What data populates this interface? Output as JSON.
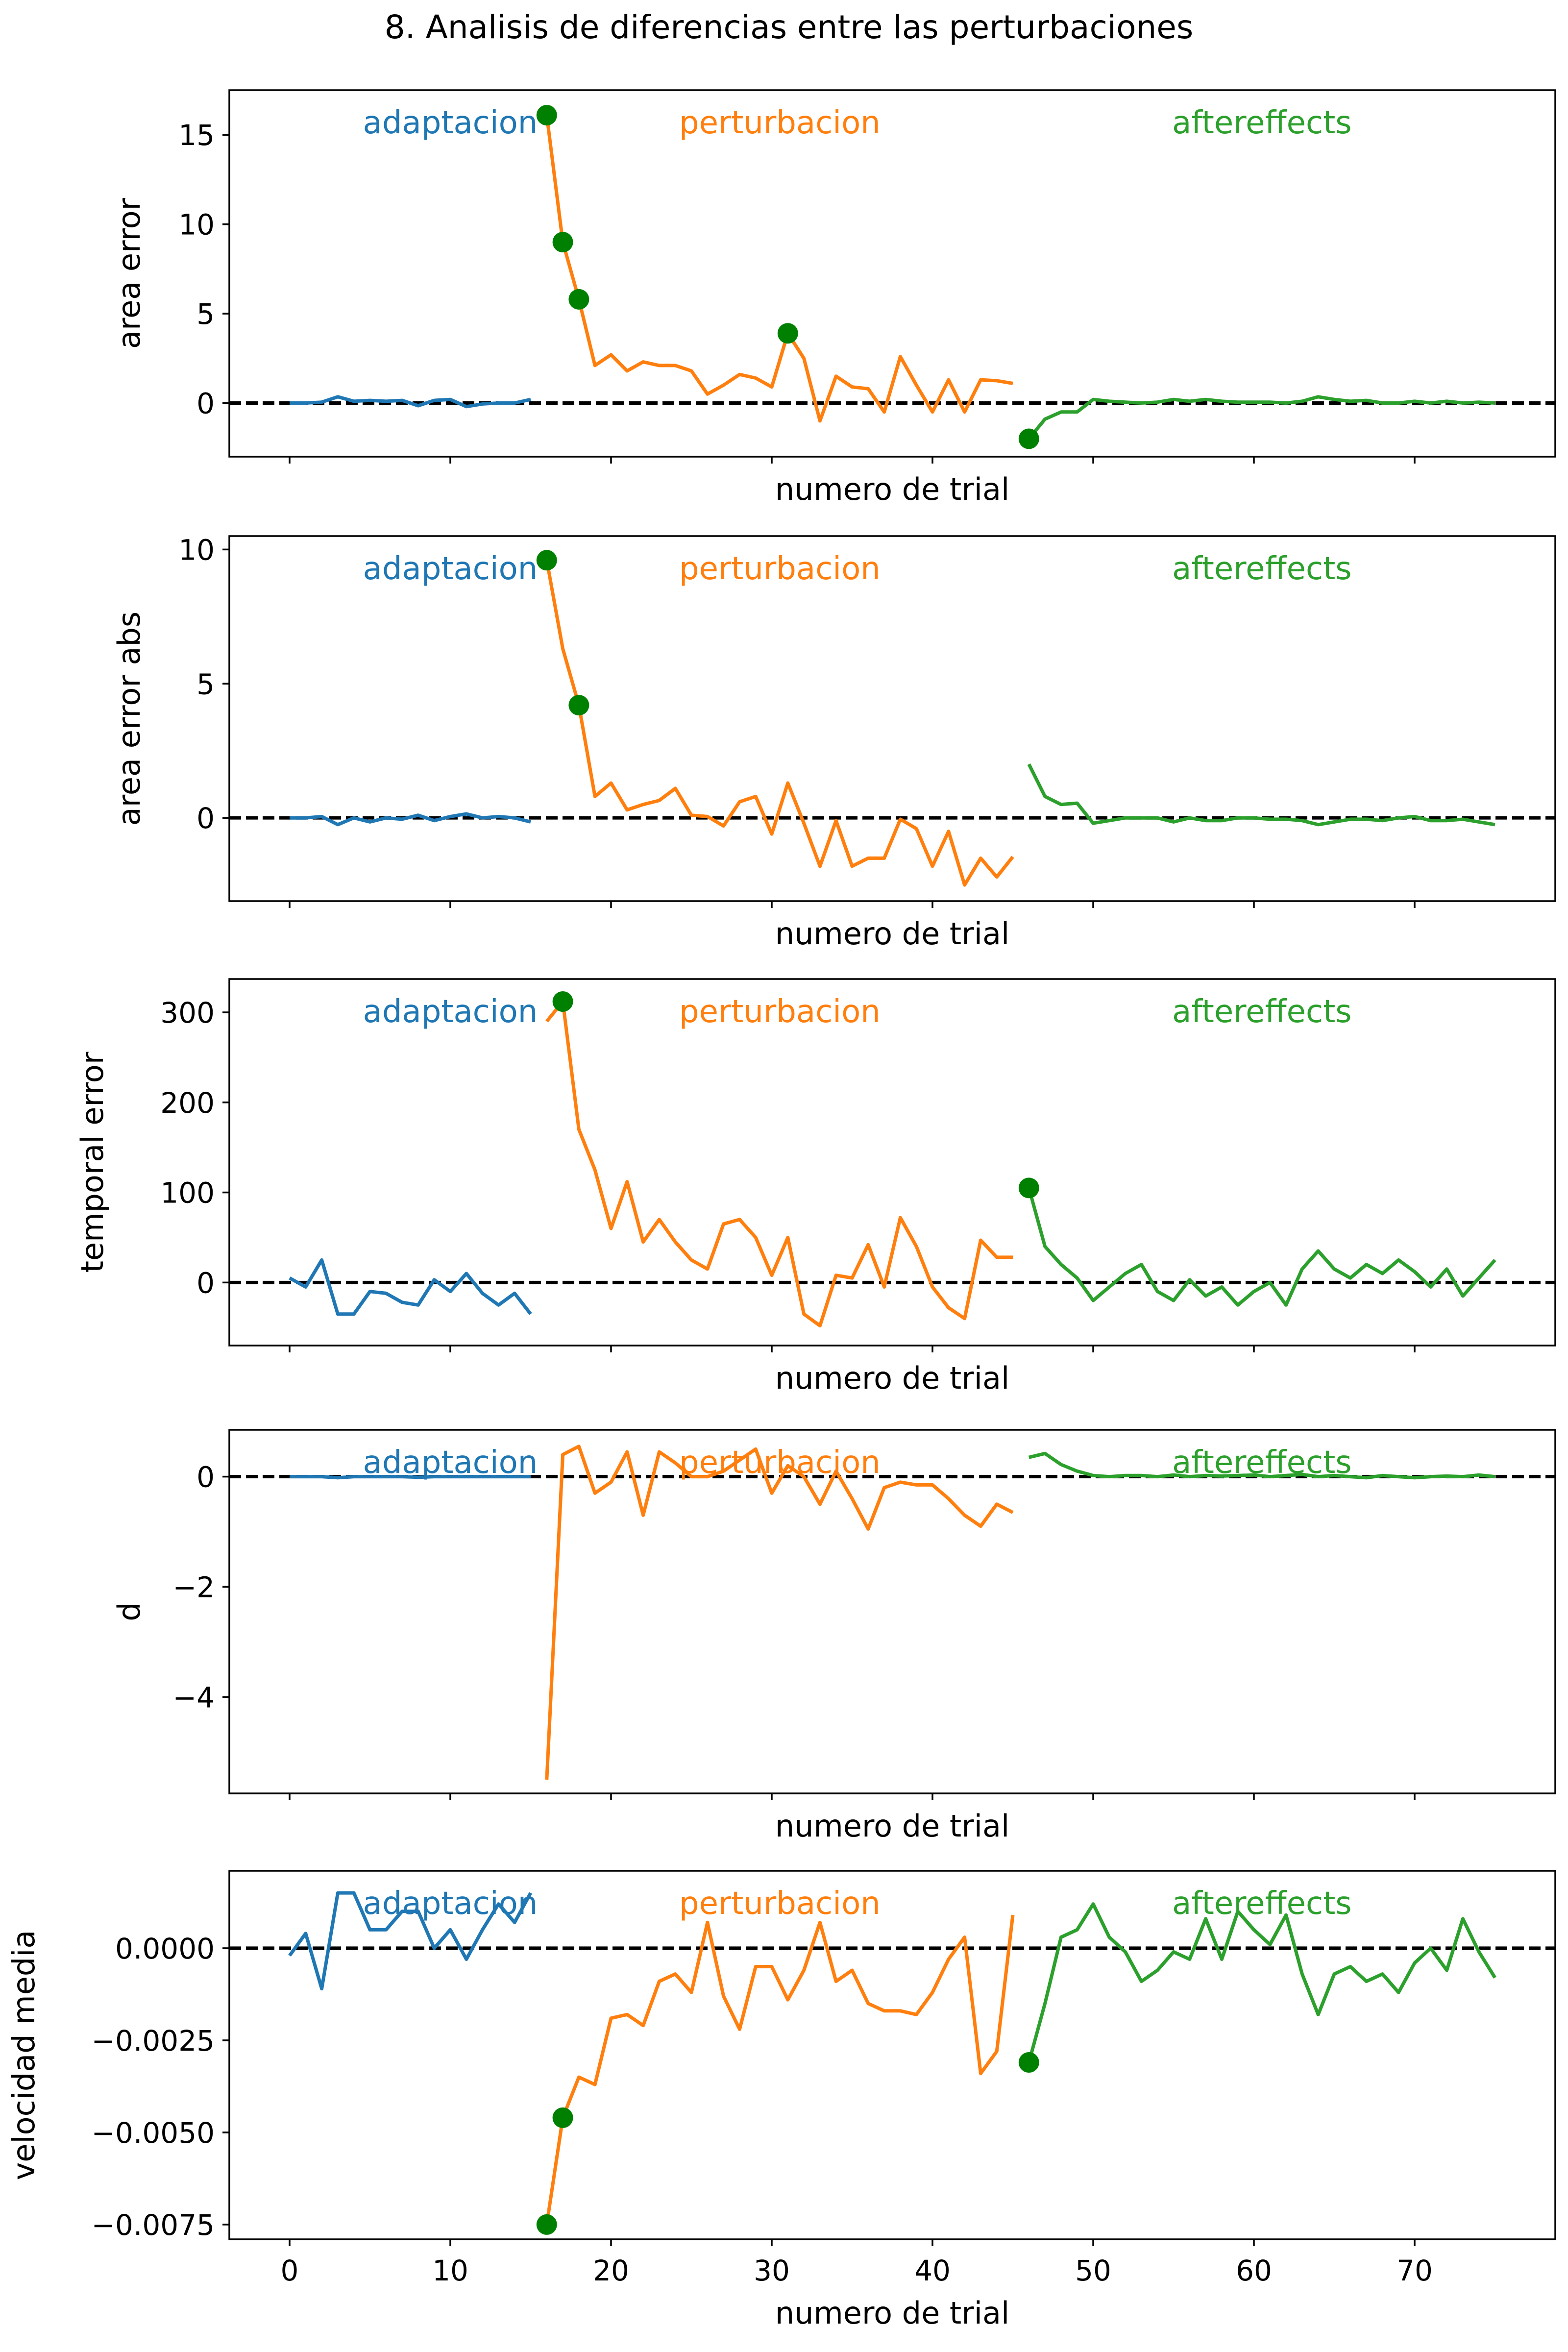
{
  "figure": {
    "title": "8. Analisis de diferencias entre las perturbaciones"
  },
  "colors": {
    "adaptacion": "#1f77b4",
    "perturbacion": "#ff7f0e",
    "aftereffects": "#2ca02c",
    "marker": "#008000",
    "zero_line": "#000000"
  },
  "chart_data": [
    {
      "type": "line",
      "ylabel": "area error",
      "xlabel": "numero de trial",
      "xlim": [
        -3.75,
        78.75
      ],
      "ylim": [
        -3.0,
        17.5
      ],
      "yticks": [
        0,
        5,
        10,
        15
      ],
      "ytick_labels": [
        "0",
        "5",
        "10",
        "15"
      ],
      "xticks": [
        0,
        10,
        20,
        30,
        40,
        50,
        60,
        70
      ],
      "xtick_labels": [],
      "zero_line": 0,
      "annotations": [
        "adaptacion",
        "perturbacion",
        "aftereffects"
      ],
      "series": [
        {
          "key": "adaptacion",
          "x": [
            0,
            1,
            2,
            3,
            4,
            5,
            6,
            7,
            8,
            9,
            10,
            11,
            12,
            13,
            14,
            15
          ],
          "y": [
            0.0,
            0.0,
            0.05,
            0.35,
            0.1,
            0.15,
            0.1,
            0.15,
            -0.15,
            0.15,
            0.2,
            -0.2,
            -0.05,
            0.0,
            0.0,
            0.2
          ]
        },
        {
          "key": "perturbacion",
          "x": [
            16,
            17,
            18,
            19,
            20,
            21,
            22,
            23,
            24,
            25,
            26,
            27,
            28,
            29,
            30,
            31,
            32,
            33,
            34,
            35,
            36,
            37,
            38,
            39,
            40,
            41,
            42,
            43,
            44,
            45
          ],
          "y": [
            16.1,
            9.0,
            5.8,
            2.1,
            2.7,
            1.8,
            2.3,
            2.1,
            2.1,
            1.8,
            0.5,
            1.0,
            1.6,
            1.4,
            0.9,
            3.9,
            2.5,
            -1.0,
            1.5,
            0.9,
            0.8,
            -0.5,
            2.6,
            1.0,
            -0.5,
            1.3,
            -0.5,
            1.3,
            1.25,
            1.1
          ]
        },
        {
          "key": "aftereffects",
          "x": [
            46,
            47,
            48,
            49,
            50,
            51,
            52,
            53,
            54,
            55,
            56,
            57,
            58,
            59,
            60,
            61,
            62,
            63,
            64,
            65,
            66,
            67,
            68,
            69,
            70,
            71,
            72,
            73,
            74,
            75
          ],
          "y": [
            -2.0,
            -0.9,
            -0.5,
            -0.5,
            0.2,
            0.1,
            0.05,
            0.0,
            0.05,
            0.2,
            0.1,
            0.2,
            0.1,
            0.05,
            0.05,
            0.05,
            0.0,
            0.1,
            0.35,
            0.2,
            0.1,
            0.15,
            0.0,
            0.0,
            0.1,
            0.0,
            0.1,
            0.0,
            0.05,
            0.0
          ]
        }
      ],
      "markers": {
        "x": [
          16,
          17,
          18,
          31,
          46
        ],
        "y": [
          16.1,
          9.0,
          5.8,
          3.9,
          -2.0
        ]
      }
    },
    {
      "type": "line",
      "ylabel": "area error abs",
      "xlabel": "numero de trial",
      "xlim": [
        -3.75,
        78.75
      ],
      "ylim": [
        -3.1,
        10.5
      ],
      "yticks": [
        0,
        5,
        10
      ],
      "ytick_labels": [
        "0",
        "5",
        "10"
      ],
      "xticks": [
        0,
        10,
        20,
        30,
        40,
        50,
        60,
        70
      ],
      "xtick_labels": [],
      "zero_line": 0,
      "annotations": [
        "adaptacion",
        "perturbacion",
        "aftereffects"
      ],
      "series": [
        {
          "key": "adaptacion",
          "x": [
            0,
            1,
            2,
            3,
            4,
            5,
            6,
            7,
            8,
            9,
            10,
            11,
            12,
            13,
            14,
            15
          ],
          "y": [
            0.0,
            0.0,
            0.05,
            -0.25,
            0.0,
            -0.15,
            0.0,
            -0.05,
            0.1,
            -0.1,
            0.05,
            0.15,
            0.0,
            0.05,
            0.0,
            -0.15
          ]
        },
        {
          "key": "perturbacion",
          "x": [
            16,
            17,
            18,
            19,
            20,
            21,
            22,
            23,
            24,
            25,
            26,
            27,
            28,
            29,
            30,
            31,
            32,
            33,
            34,
            35,
            36,
            37,
            38,
            39,
            40,
            41,
            42,
            43,
            44,
            45
          ],
          "y": [
            9.6,
            6.3,
            4.2,
            0.8,
            1.3,
            0.3,
            0.5,
            0.65,
            1.1,
            0.1,
            0.05,
            -0.3,
            0.6,
            0.8,
            -0.6,
            1.3,
            -0.2,
            -1.8,
            -0.1,
            -1.8,
            -1.5,
            -1.5,
            -0.05,
            -0.4,
            -1.8,
            -0.5,
            -2.5,
            -1.5,
            -2.2,
            -1.45
          ]
        },
        {
          "key": "aftereffects",
          "x": [
            46,
            47,
            48,
            49,
            50,
            51,
            52,
            53,
            54,
            55,
            56,
            57,
            58,
            59,
            60,
            61,
            62,
            63,
            64,
            65,
            66,
            67,
            68,
            69,
            70,
            71,
            72,
            73,
            74,
            75
          ],
          "y": [
            2.0,
            0.8,
            0.5,
            0.55,
            -0.2,
            -0.1,
            0.0,
            0.0,
            0.0,
            -0.15,
            0.0,
            -0.1,
            -0.1,
            0.0,
            0.0,
            -0.05,
            -0.05,
            -0.1,
            -0.25,
            -0.15,
            -0.05,
            -0.05,
            -0.1,
            0.0,
            0.05,
            -0.1,
            -0.1,
            -0.05,
            -0.15,
            -0.25
          ]
        }
      ],
      "markers": {
        "x": [
          16,
          18
        ],
        "y": [
          9.6,
          4.2
        ]
      }
    },
    {
      "type": "line",
      "ylabel": "temporal error",
      "xlabel": "numero de trial",
      "xlim": [
        -3.75,
        78.75
      ],
      "ylim": [
        -70,
        337
      ],
      "yticks": [
        0,
        100,
        200,
        300
      ],
      "ytick_labels": [
        "0",
        "100",
        "200",
        "300"
      ],
      "xticks": [
        0,
        10,
        20,
        30,
        40,
        50,
        60,
        70
      ],
      "xtick_labels": [],
      "zero_line": 0,
      "annotations": [
        "adaptacion",
        "perturbacion",
        "aftereffects"
      ],
      "series": [
        {
          "key": "adaptacion",
          "x": [
            0,
            1,
            2,
            3,
            4,
            5,
            6,
            7,
            8,
            9,
            10,
            11,
            12,
            13,
            14,
            15
          ],
          "y": [
            5,
            -5,
            25,
            -35,
            -35,
            -10,
            -12,
            -22,
            -25,
            3,
            -10,
            10,
            -12,
            -25,
            -12,
            -35
          ]
        },
        {
          "key": "perturbacion",
          "x": [
            16,
            17,
            18,
            19,
            20,
            21,
            22,
            23,
            24,
            25,
            26,
            27,
            28,
            29,
            30,
            31,
            32,
            33,
            34,
            35,
            36,
            37,
            38,
            39,
            40,
            41,
            42,
            43,
            44,
            45
          ],
          "y": [
            290,
            312,
            170,
            125,
            60,
            112,
            45,
            70,
            45,
            25,
            15,
            65,
            70,
            50,
            8,
            50,
            -35,
            -48,
            8,
            5,
            42,
            -5,
            72,
            40,
            -5,
            -28,
            -40,
            47,
            28,
            28
          ]
        },
        {
          "key": "aftereffects",
          "x": [
            46,
            47,
            48,
            49,
            50,
            51,
            52,
            53,
            54,
            55,
            56,
            57,
            58,
            59,
            60,
            61,
            62,
            63,
            64,
            65,
            66,
            67,
            68,
            69,
            70,
            71,
            72,
            73,
            74,
            75
          ],
          "y": [
            105,
            40,
            20,
            5,
            -20,
            -5,
            10,
            20,
            -10,
            -20,
            3,
            -15,
            -5,
            -25,
            -10,
            0,
            -25,
            15,
            35,
            15,
            5,
            20,
            10,
            25,
            12,
            -5,
            15,
            -15,
            5,
            25
          ]
        }
      ],
      "markers": {
        "x": [
          17,
          46
        ],
        "y": [
          312,
          105
        ]
      }
    },
    {
      "type": "line",
      "ylabel": "d",
      "xlabel": "numero de trial",
      "xlim": [
        -3.75,
        78.75
      ],
      "ylim": [
        -5.75,
        0.85
      ],
      "yticks": [
        -4,
        -2,
        0
      ],
      "ytick_labels": [
        "−4",
        "−2",
        "0"
      ],
      "xticks": [
        0,
        10,
        20,
        30,
        40,
        50,
        60,
        70
      ],
      "xtick_labels": [],
      "zero_line": 0,
      "annotations": [
        "adaptacion",
        "perturbacion",
        "aftereffects"
      ],
      "series": [
        {
          "key": "adaptacion",
          "x": [
            0,
            1,
            2,
            3,
            4,
            5,
            6,
            7,
            8,
            9,
            10,
            11,
            12,
            13,
            14,
            15
          ],
          "y": [
            0.0,
            0.0,
            0.0,
            -0.02,
            0.0,
            0.0,
            0.0,
            0.0,
            -0.01,
            0.0,
            0.0,
            0.0,
            0.0,
            0.0,
            0.0,
            0.0
          ]
        },
        {
          "key": "perturbacion",
          "x": [
            16,
            17,
            18,
            19,
            20,
            21,
            22,
            23,
            24,
            25,
            26,
            27,
            28,
            29,
            30,
            31,
            32,
            33,
            34,
            35,
            36,
            37,
            38,
            39,
            40,
            41,
            42,
            43,
            44,
            45
          ],
          "y": [
            -5.5,
            0.4,
            0.55,
            -0.3,
            -0.1,
            0.45,
            -0.7,
            0.45,
            0.25,
            0.0,
            0.0,
            0.1,
            0.3,
            0.5,
            -0.3,
            0.2,
            0.0,
            -0.5,
            0.1,
            -0.4,
            -0.95,
            -0.2,
            -0.1,
            -0.15,
            -0.15,
            -0.4,
            -0.7,
            -0.9,
            -0.5,
            -0.65
          ]
        },
        {
          "key": "aftereffects",
          "x": [
            46,
            47,
            48,
            49,
            50,
            51,
            52,
            53,
            54,
            55,
            56,
            57,
            58,
            59,
            60,
            61,
            62,
            63,
            64,
            65,
            66,
            67,
            68,
            69,
            70,
            71,
            72,
            73,
            74,
            75
          ],
          "y": [
            0.35,
            0.42,
            0.22,
            0.1,
            0.02,
            0.0,
            0.02,
            0.02,
            0.0,
            0.03,
            0.0,
            0.02,
            0.01,
            0.02,
            0.03,
            0.0,
            0.02,
            0.04,
            0.0,
            0.02,
            0.0,
            -0.02,
            0.02,
            0.0,
            -0.02,
            0.0,
            0.01,
            0.0,
            0.03,
            0.0
          ]
        }
      ],
      "markers": {
        "x": [],
        "y": []
      }
    },
    {
      "type": "line",
      "ylabel": "velocidad media",
      "xlabel": "numero de trial",
      "xlim": [
        -3.75,
        78.75
      ],
      "ylim": [
        -0.0079,
        0.0021
      ],
      "yticks": [
        -0.0075,
        -0.005,
        -0.0025,
        0.0
      ],
      "ytick_labels": [
        "−0.0075",
        "−0.0050",
        "−0.0025",
        "0.0000"
      ],
      "xticks": [
        0,
        10,
        20,
        30,
        40,
        50,
        60,
        70
      ],
      "xtick_labels": [
        "0",
        "10",
        "20",
        "30",
        "40",
        "50",
        "60",
        "70"
      ],
      "zero_line": 0,
      "annotations": [
        "adaptacion",
        "perturbacion",
        "aftereffects"
      ],
      "series": [
        {
          "key": "adaptacion",
          "x": [
            0,
            1,
            2,
            3,
            4,
            5,
            6,
            7,
            8,
            9,
            10,
            11,
            12,
            13,
            14,
            15
          ],
          "y": [
            -0.0002,
            0.0004,
            -0.0011,
            0.0015,
            0.0015,
            0.0005,
            0.0005,
            0.001,
            0.001,
            0.0,
            0.0005,
            -0.0003,
            0.0005,
            0.0012,
            0.0007,
            0.0015
          ]
        },
        {
          "key": "perturbacion",
          "x": [
            16,
            17,
            18,
            19,
            20,
            21,
            22,
            23,
            24,
            25,
            26,
            27,
            28,
            29,
            30,
            31,
            32,
            33,
            34,
            35,
            36,
            37,
            38,
            39,
            40,
            41,
            42,
            43,
            44,
            45
          ],
          "y": [
            -0.0075,
            -0.0046,
            -0.0035,
            -0.0037,
            -0.0019,
            -0.0018,
            -0.0021,
            -0.0009,
            -0.0007,
            -0.0012,
            0.0007,
            -0.0013,
            -0.0022,
            -0.0005,
            -0.0005,
            -0.0014,
            -0.0006,
            0.0007,
            -0.0009,
            -0.0006,
            -0.0015,
            -0.0017,
            -0.0017,
            -0.0018,
            -0.0012,
            -0.0003,
            0.0003,
            -0.0034,
            -0.0028,
            0.0009
          ]
        },
        {
          "key": "aftereffects",
          "x": [
            46,
            47,
            48,
            49,
            50,
            51,
            52,
            53,
            54,
            55,
            56,
            57,
            58,
            59,
            60,
            61,
            62,
            63,
            64,
            65,
            66,
            67,
            68,
            69,
            70,
            71,
            72,
            73,
            74,
            75
          ],
          "y": [
            -0.0031,
            -0.0015,
            0.0003,
            0.0005,
            0.0012,
            0.0003,
            -0.0001,
            -0.0009,
            -0.0006,
            -0.0001,
            -0.0003,
            0.0008,
            -0.0003,
            0.001,
            0.0005,
            0.0001,
            0.0009,
            -0.0007,
            -0.0018,
            -0.0007,
            -0.0005,
            -0.0009,
            -0.0007,
            -0.0012,
            -0.0004,
            0.0,
            -0.0006,
            0.0008,
            -0.0001,
            -0.0008
          ]
        }
      ],
      "markers": {
        "x": [
          16,
          17,
          46
        ],
        "y": [
          -0.0075,
          -0.0046,
          -0.0031
        ]
      }
    }
  ]
}
